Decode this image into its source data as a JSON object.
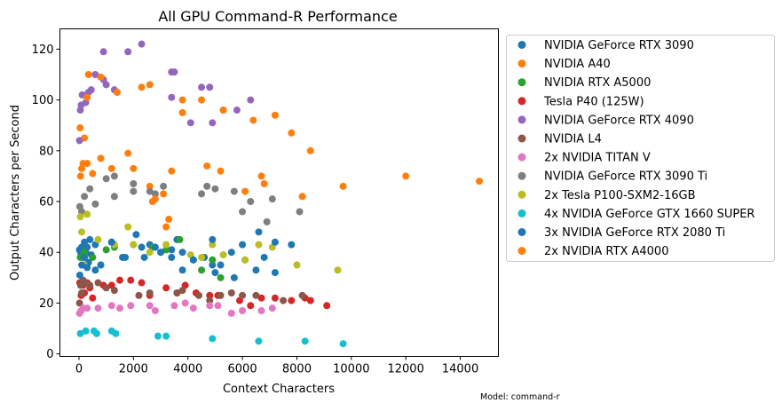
{
  "chart_data": {
    "type": "scatter",
    "title": "All GPU Command-R Performance",
    "xlabel": "Context Characters",
    "ylabel": "Output Characters per Second",
    "xlim": [
      -700,
      15400
    ],
    "ylim": [
      -1,
      128
    ],
    "xticks": [
      0,
      2000,
      4000,
      6000,
      8000,
      10000,
      12000,
      14000
    ],
    "yticks": [
      0,
      20,
      40,
      60,
      80,
      100,
      120
    ],
    "grid": false,
    "legend_position": "outside-right",
    "footnote": "Model: command-r",
    "series": [
      {
        "name": "NVIDIA GeForce RTX 3090",
        "color": "#1f77b4",
        "points": [
          [
            20,
            41
          ],
          [
            60,
            40
          ],
          [
            100,
            42
          ],
          [
            150,
            38
          ],
          [
            200,
            44
          ],
          [
            250,
            40
          ],
          [
            300,
            42
          ],
          [
            350,
            36
          ],
          [
            400,
            45
          ],
          [
            450,
            39
          ],
          [
            600,
            43
          ],
          [
            800,
            35
          ],
          [
            1200,
            44
          ],
          [
            1600,
            38
          ],
          [
            2100,
            47
          ],
          [
            2400,
            38
          ],
          [
            2600,
            43
          ],
          [
            3000,
            40
          ],
          [
            3400,
            41
          ],
          [
            3600,
            45
          ],
          [
            3800,
            33
          ],
          [
            4200,
            37
          ],
          [
            4600,
            38
          ],
          [
            4900,
            35
          ],
          [
            5000,
            32
          ],
          [
            5200,
            35
          ],
          [
            5700,
            30
          ],
          [
            6100,
            37
          ],
          [
            6500,
            33
          ],
          [
            6800,
            38
          ],
          [
            7200,
            32
          ],
          [
            7800,
            43
          ]
        ]
      },
      {
        "name": "NVIDIA A40",
        "color": "#ff7f0e",
        "points": [
          [
            40,
            89
          ],
          [
            100,
            73
          ],
          [
            200,
            85
          ],
          [
            300,
            75
          ],
          [
            500,
            71
          ],
          [
            800,
            77
          ],
          [
            1200,
            73
          ],
          [
            1800,
            79
          ],
          [
            2000,
            73
          ],
          [
            2600,
            66
          ],
          [
            2700,
            60
          ],
          [
            3100,
            63
          ],
          [
            3400,
            72
          ],
          [
            3800,
            95
          ],
          [
            4700,
            74
          ],
          [
            5200,
            72
          ],
          [
            6100,
            64
          ],
          [
            6400,
            92
          ],
          [
            6700,
            70
          ],
          [
            6800,
            67
          ],
          [
            7200,
            94
          ],
          [
            7800,
            87
          ],
          [
            8200,
            62
          ],
          [
            8500,
            80
          ],
          [
            9700,
            66
          ],
          [
            12000,
            70
          ],
          [
            14700,
            68
          ]
        ]
      },
      {
        "name": "NVIDIA RTX A5000",
        "color": "#2ca02c",
        "points": [
          [
            50,
            38
          ],
          [
            200,
            40
          ],
          [
            500,
            38
          ],
          [
            1000,
            41
          ],
          [
            1300,
            42
          ],
          [
            2000,
            43
          ],
          [
            2700,
            42
          ],
          [
            3200,
            41
          ],
          [
            3700,
            45
          ],
          [
            4500,
            33
          ],
          [
            4900,
            37
          ],
          [
            5200,
            30
          ]
        ]
      },
      {
        "name": "Tesla P40 (125W)",
        "color": "#d62728",
        "points": [
          [
            30,
            28
          ],
          [
            80,
            23
          ],
          [
            150,
            27
          ],
          [
            200,
            24
          ],
          [
            300,
            28
          ],
          [
            400,
            26
          ],
          [
            500,
            22
          ],
          [
            900,
            27
          ],
          [
            1200,
            27
          ],
          [
            1500,
            29
          ],
          [
            1900,
            29
          ],
          [
            2300,
            28
          ],
          [
            2600,
            23
          ],
          [
            3200,
            26
          ],
          [
            3600,
            24
          ],
          [
            3900,
            27
          ],
          [
            4300,
            24
          ],
          [
            4800,
            23
          ],
          [
            5100,
            23
          ],
          [
            5900,
            21
          ],
          [
            6300,
            19
          ],
          [
            6700,
            22
          ],
          [
            7200,
            22
          ],
          [
            7800,
            21
          ],
          [
            8300,
            22
          ],
          [
            8500,
            21
          ],
          [
            9100,
            19
          ]
        ]
      },
      {
        "name": "NVIDIA GeForce RTX 4090",
        "color": "#9467bd",
        "points": [
          [
            20,
            84
          ],
          [
            50,
            96
          ],
          [
            80,
            98
          ],
          [
            120,
            102
          ],
          [
            250,
            99
          ],
          [
            350,
            103
          ],
          [
            450,
            104
          ],
          [
            600,
            110
          ],
          [
            900,
            119
          ],
          [
            900,
            108
          ],
          [
            1000,
            106
          ],
          [
            1300,
            104
          ],
          [
            1800,
            119
          ],
          [
            2300,
            122
          ],
          [
            3400,
            101
          ],
          [
            3400,
            111
          ],
          [
            3500,
            111
          ],
          [
            4100,
            91
          ],
          [
            4500,
            105
          ],
          [
            4800,
            105
          ],
          [
            4900,
            91
          ],
          [
            5300,
            96
          ],
          [
            5800,
            96
          ],
          [
            6300,
            100
          ]
        ]
      },
      {
        "name": "NVIDIA L4",
        "color": "#8c564b",
        "points": [
          [
            20,
            20
          ],
          [
            60,
            27
          ],
          [
            100,
            24
          ],
          [
            150,
            29
          ],
          [
            250,
            28
          ],
          [
            400,
            27
          ],
          [
            700,
            28
          ],
          [
            1000,
            26
          ],
          [
            1300,
            25
          ],
          [
            2200,
            23
          ],
          [
            2600,
            24
          ],
          [
            3600,
            24
          ],
          [
            3800,
            25
          ],
          [
            4400,
            23
          ],
          [
            4800,
            21
          ],
          [
            5200,
            23
          ],
          [
            5600,
            24
          ],
          [
            6000,
            23
          ],
          [
            6500,
            23
          ],
          [
            7500,
            21
          ],
          [
            8200,
            23
          ]
        ]
      },
      {
        "name": "2x NVIDIA TITAN V",
        "color": "#e377c2",
        "points": [
          [
            20,
            16
          ],
          [
            80,
            17
          ],
          [
            150,
            18
          ],
          [
            300,
            18
          ],
          [
            700,
            18
          ],
          [
            1200,
            19
          ],
          [
            1500,
            18
          ],
          [
            1900,
            19
          ],
          [
            2600,
            19
          ],
          [
            2800,
            17
          ],
          [
            3500,
            19
          ],
          [
            3900,
            20
          ],
          [
            4200,
            18
          ],
          [
            4800,
            19
          ],
          [
            5100,
            19
          ],
          [
            5600,
            16
          ],
          [
            6000,
            17
          ],
          [
            6700,
            17
          ],
          [
            7100,
            18
          ]
        ]
      },
      {
        "name": "NVIDIA GeForce RTX 3090 Ti",
        "color": "#7f7f7f",
        "points": [
          [
            30,
            58
          ],
          [
            100,
            56
          ],
          [
            200,
            62
          ],
          [
            400,
            65
          ],
          [
            600,
            59
          ],
          [
            1000,
            69
          ],
          [
            1300,
            70
          ],
          [
            1300,
            62
          ],
          [
            2000,
            67
          ],
          [
            2000,
            64
          ],
          [
            2600,
            64
          ],
          [
            2800,
            63
          ],
          [
            3100,
            66
          ],
          [
            4500,
            63
          ],
          [
            4700,
            66
          ],
          [
            5000,
            65
          ],
          [
            5700,
            64
          ],
          [
            6000,
            56
          ],
          [
            6300,
            60
          ],
          [
            6900,
            52
          ],
          [
            7100,
            61
          ],
          [
            8100,
            56
          ]
        ]
      },
      {
        "name": "2x Tesla P100-SXM2-16GB",
        "color": "#bcbd22",
        "points": [
          [
            50,
            54
          ],
          [
            100,
            48
          ],
          [
            200,
            35
          ],
          [
            300,
            55
          ],
          [
            700,
            45
          ],
          [
            1300,
            43
          ],
          [
            1800,
            50
          ],
          [
            2000,
            43
          ],
          [
            2600,
            40
          ],
          [
            3200,
            43
          ],
          [
            4100,
            39
          ],
          [
            4500,
            38
          ],
          [
            4900,
            43
          ],
          [
            5300,
            39
          ],
          [
            6100,
            37
          ],
          [
            6600,
            43
          ],
          [
            7100,
            42
          ],
          [
            8000,
            35
          ],
          [
            9500,
            33
          ]
        ]
      },
      {
        "name": "4x NVIDIA GeForce GTX 1660 SUPER",
        "color": "#17becf",
        "points": [
          [
            50,
            8
          ],
          [
            250,
            9
          ],
          [
            550,
            9
          ],
          [
            650,
            8
          ],
          [
            1200,
            9
          ],
          [
            1350,
            8
          ],
          [
            2900,
            7
          ],
          [
            3200,
            7
          ],
          [
            4900,
            6
          ],
          [
            6600,
            5
          ],
          [
            8300,
            5
          ],
          [
            9700,
            4
          ]
        ]
      },
      {
        "name": "3x NVIDIA GeForce RTX 2080 Ti",
        "color": "#1f77b4",
        "points": [
          [
            30,
            31
          ],
          [
            100,
            35
          ],
          [
            200,
            38
          ],
          [
            300,
            34
          ],
          [
            600,
            33
          ],
          [
            800,
            35
          ],
          [
            1200,
            44
          ],
          [
            1700,
            38
          ],
          [
            2300,
            42
          ],
          [
            2800,
            42
          ],
          [
            3000,
            40
          ],
          [
            3400,
            38
          ],
          [
            3800,
            40
          ],
          [
            4200,
            37
          ],
          [
            4900,
            45
          ],
          [
            5600,
            40
          ],
          [
            6000,
            43
          ],
          [
            6600,
            48
          ],
          [
            7200,
            44
          ]
        ]
      },
      {
        "name": "2x NVIDIA RTX A4000",
        "color": "#ff7f0e",
        "points": [
          [
            60,
            70
          ],
          [
            150,
            75
          ],
          [
            300,
            101
          ],
          [
            350,
            110
          ],
          [
            800,
            109
          ],
          [
            1400,
            103
          ],
          [
            2300,
            105
          ],
          [
            2600,
            106
          ],
          [
            3800,
            100
          ],
          [
            4500,
            100
          ],
          [
            5300,
            96
          ],
          [
            3300,
            53
          ],
          [
            3200,
            50
          ],
          [
            2800,
            61
          ]
        ]
      }
    ]
  }
}
